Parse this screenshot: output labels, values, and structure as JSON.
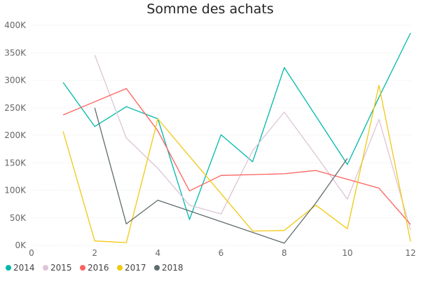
{
  "chart_data": {
    "type": "line",
    "title": "Somme des achats",
    "xlabel": "",
    "ylabel": "",
    "xlim": [
      0,
      12
    ],
    "ylim": [
      0,
      400000
    ],
    "x_ticks": [
      0,
      2,
      4,
      6,
      8,
      10,
      12
    ],
    "y_ticks": [
      0,
      50000,
      100000,
      150000,
      200000,
      250000,
      300000,
      350000,
      400000
    ],
    "y_tick_labels": [
      "0K",
      "50K",
      "100K",
      "150K",
      "200K",
      "250K",
      "300K",
      "350K",
      "400K"
    ],
    "grid": "horizontal",
    "legend_position": "bottom-left",
    "series": [
      {
        "name": "2014",
        "color": "#01B8AA",
        "x": [
          1,
          2,
          3,
          4,
          5,
          6,
          7,
          8,
          9,
          10,
          11,
          12
        ],
        "y": [
          296000,
          216000,
          252000,
          230000,
          47000,
          201000,
          152000,
          323000,
          235000,
          147000,
          269000,
          386000
        ]
      },
      {
        "name": "2015",
        "color": "#DCC5D6",
        "x": [
          2,
          3,
          4,
          5,
          6,
          7,
          8,
          9,
          10,
          11,
          12
        ],
        "y": [
          346000,
          195000,
          140000,
          73000,
          57000,
          172000,
          242000,
          164000,
          84000,
          229000,
          28000
        ]
      },
      {
        "name": "2016",
        "color": "#FD625E",
        "x": [
          1,
          3,
          4,
          5,
          6,
          8,
          9,
          11,
          12
        ],
        "y": [
          237000,
          285000,
          208000,
          99000,
          127000,
          130000,
          136000,
          104000,
          38000
        ]
      },
      {
        "name": "2017",
        "color": "#F2C80F",
        "x": [
          1,
          2,
          3,
          4,
          7,
          8,
          9,
          10,
          11,
          12
        ],
        "y": [
          207000,
          8000,
          5000,
          230000,
          26000,
          27000,
          73000,
          30000,
          291000,
          7000
        ]
      },
      {
        "name": "2018",
        "color": "#5F6B6D",
        "x": [
          2,
          3,
          4,
          8,
          9,
          10
        ],
        "y": [
          250000,
          39000,
          82000,
          4000,
          77000,
          158000
        ]
      }
    ]
  }
}
